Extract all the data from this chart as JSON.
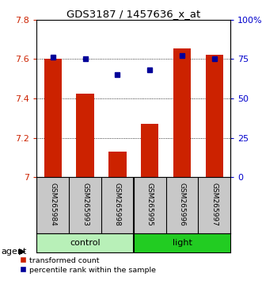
{
  "title": "GDS3187 / 1457636_x_at",
  "samples": [
    "GSM265984",
    "GSM265993",
    "GSM265998",
    "GSM265995",
    "GSM265996",
    "GSM265997"
  ],
  "bar_values": [
    7.603,
    7.425,
    7.13,
    7.27,
    7.655,
    7.62
  ],
  "percentile_values": [
    76,
    75,
    65,
    68,
    77,
    75
  ],
  "bar_color": "#cc2200",
  "dot_color": "#000099",
  "ylim_left": [
    7.0,
    7.8
  ],
  "ylim_right": [
    0,
    100
  ],
  "yticks_left": [
    7.0,
    7.2,
    7.4,
    7.6,
    7.8
  ],
  "yticks_right": [
    0,
    25,
    50,
    75,
    100
  ],
  "groups": [
    {
      "label": "control",
      "indices": [
        0,
        1,
        2
      ],
      "color": "#b8f0b8"
    },
    {
      "label": "light",
      "indices": [
        3,
        4,
        5
      ],
      "color": "#22cc22"
    }
  ],
  "group_label": "agent",
  "legend_bar_label": "transformed count",
  "legend_dot_label": "percentile rank within the sample",
  "bar_width": 0.55,
  "sample_label_bg": "#c8c8c8",
  "background_color": "#ffffff",
  "left_tick_color": "#cc2200",
  "right_tick_color": "#0000cc"
}
